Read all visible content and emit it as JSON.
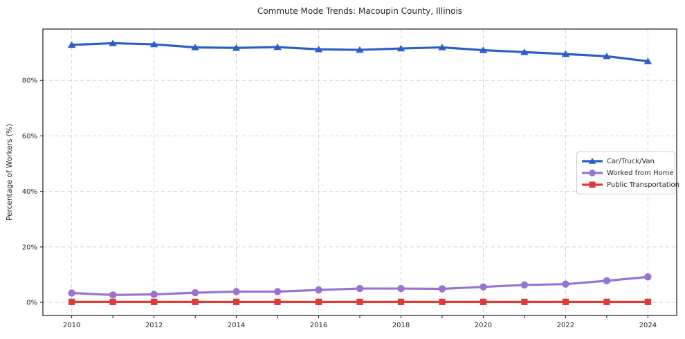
{
  "chart_data": {
    "type": "line",
    "title": "Commute Mode Trends: Macoupin County, Illinois",
    "xlabel": "",
    "ylabel": "Percentage of Workers (%)",
    "x": [
      2010,
      2011,
      2012,
      2013,
      2014,
      2015,
      2016,
      2017,
      2018,
      2019,
      2020,
      2021,
      2022,
      2023,
      2024
    ],
    "xlim": [
      2009.3,
      2024.7
    ],
    "ylim": [
      -4.7,
      98.5
    ],
    "xtick_years_labeled": [
      2010,
      2012,
      2014,
      2016,
      2018,
      2020,
      2022,
      2024
    ],
    "xtick_labels": [
      "2010",
      "2012",
      "2014",
      "2016",
      "2018",
      "2020",
      "2022",
      "2024"
    ],
    "yticks": [
      0,
      20,
      40,
      60,
      80
    ],
    "ytick_labels": [
      "0%",
      "20%",
      "40%",
      "60%",
      "80%"
    ],
    "grid": true,
    "grid_style": "dashed",
    "legend_position": "center-right",
    "series": [
      {
        "name": "Car/Truck/Van",
        "color": "#2b5fc7",
        "marker": "triangle",
        "values": [
          92.8,
          93.4,
          93.0,
          91.9,
          91.7,
          92.0,
          91.2,
          91.0,
          91.5,
          91.9,
          90.9,
          90.2,
          89.5,
          88.7,
          86.9
        ]
      },
      {
        "name": "Worked from Home",
        "color": "#9673d5",
        "marker": "circle",
        "values": [
          3.4,
          2.7,
          2.9,
          3.5,
          3.9,
          3.9,
          4.5,
          5.0,
          5.0,
          4.9,
          5.6,
          6.3,
          6.6,
          7.8,
          9.2
        ]
      },
      {
        "name": "Public Transportation",
        "color": "#e23936",
        "marker": "square",
        "values": [
          0.2,
          0.2,
          0.2,
          0.2,
          0.2,
          0.2,
          0.2,
          0.2,
          0.2,
          0.2,
          0.2,
          0.2,
          0.2,
          0.2,
          0.2
        ]
      }
    ],
    "colors": {
      "grid": "#cccccc",
      "spine": "#1a1a1a",
      "text": "#262626",
      "background": "#ffffff"
    }
  }
}
